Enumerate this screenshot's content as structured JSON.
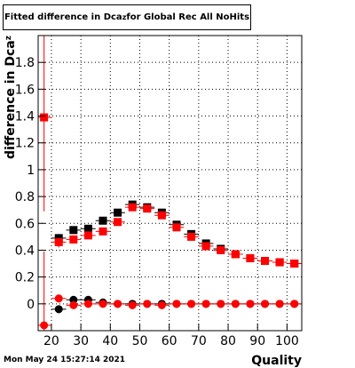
{
  "title": {
    "prefix": "Fitted difference in Dca",
    "subscript": "z",
    "suffix": " for Global Rec All NoHits"
  },
  "timestamp": "Mon May 24 15:27:14 2021",
  "chart_data": {
    "type": "scatter",
    "title": "Fitted difference in Dca_z for Global Rec All NoHits",
    "xlabel": "Quality",
    "ylabel": "difference in Dca_z",
    "xlim": [
      15.5,
      105
    ],
    "ylim": [
      -0.2,
      2.0
    ],
    "x_ticks": [
      20,
      30,
      40,
      50,
      60,
      70,
      80,
      90,
      100
    ],
    "y_ticks": [
      0,
      0.2,
      0.4,
      0.6,
      0.8,
      1,
      1.2,
      1.4,
      1.6,
      1.8
    ],
    "grid": true,
    "series": [
      {
        "marker": "square",
        "color": "#000000",
        "x": [
          22.5,
          27.5,
          32.5,
          37.5,
          42.5,
          47.5,
          52.5,
          57.5,
          62.5,
          67.5,
          72.5,
          77.5,
          82.5,
          87.5,
          92.5,
          97.5,
          102.5
        ],
        "y": [
          0.49,
          0.55,
          0.56,
          0.62,
          0.68,
          0.74,
          0.72,
          0.68,
          0.59,
          0.52,
          0.45,
          0.41,
          0.37,
          0.34,
          0.32,
          0.31,
          0.3
        ],
        "yerr": [
          0.03,
          0.02,
          0.02,
          0.02,
          0.02,
          0.02,
          0.02,
          0.02,
          0.02,
          0.02,
          0.02,
          0.01,
          0.01,
          0.01,
          0.01,
          0.01,
          0.01
        ]
      },
      {
        "marker": "square",
        "color": "#ff0000",
        "x": [
          17.5,
          22.5,
          27.5,
          32.5,
          37.5,
          42.5,
          47.5,
          52.5,
          57.5,
          62.5,
          67.5,
          72.5,
          77.5,
          82.5,
          87.5,
          92.5,
          97.5,
          102.5
        ],
        "y": [
          1.39,
          0.46,
          0.48,
          0.51,
          0.54,
          0.61,
          0.72,
          0.71,
          0.66,
          0.57,
          0.5,
          0.43,
          0.4,
          0.37,
          0.34,
          0.32,
          0.31,
          0.3
        ],
        "yerr": [
          0.7,
          0.04,
          0.03,
          0.02,
          0.02,
          0.02,
          0.02,
          0.02,
          0.02,
          0.02,
          0.02,
          0.02,
          0.01,
          0.01,
          0.01,
          0.01,
          0.01,
          0.01
        ]
      },
      {
        "marker": "circle",
        "color": "#000000",
        "x": [
          22.5,
          27.5,
          32.5,
          37.5,
          42.5,
          47.5,
          52.5,
          57.5,
          62.5,
          67.5,
          72.5,
          77.5,
          82.5,
          87.5,
          92.5,
          97.5,
          102.5
        ],
        "y": [
          -0.04,
          0.03,
          0.03,
          0.01,
          0.0,
          0.0,
          0.0,
          0.0,
          0.0,
          0.0,
          0.0,
          0.0,
          0.0,
          0.0,
          0.0,
          0.0,
          0.0
        ],
        "yerr": [
          0.03,
          0.02,
          0.02,
          0.01,
          0.01,
          0.01,
          0.01,
          0.01,
          0.01,
          0.01,
          0.01,
          0.01,
          0.01,
          0.01,
          0.01,
          0.01,
          0.01
        ]
      },
      {
        "marker": "circle",
        "color": "#ff0000",
        "x": [
          17.5,
          22.5,
          27.5,
          32.5,
          37.5,
          42.5,
          47.5,
          52.5,
          57.5,
          62.5,
          67.5,
          72.5,
          77.5,
          82.5,
          87.5,
          92.5,
          97.5,
          102.5
        ],
        "y": [
          -0.16,
          0.04,
          -0.01,
          0.0,
          0.0,
          0.0,
          -0.01,
          0.0,
          -0.01,
          0.0,
          0.0,
          0.0,
          0.0,
          0.0,
          0.0,
          0.0,
          0.0,
          0.0
        ],
        "yerr": [
          0.55,
          0.03,
          0.02,
          0.02,
          0.01,
          0.01,
          0.01,
          0.01,
          0.01,
          0.01,
          0.01,
          0.01,
          0.01,
          0.01,
          0.01,
          0.01,
          0.01,
          0.01
        ]
      }
    ]
  }
}
